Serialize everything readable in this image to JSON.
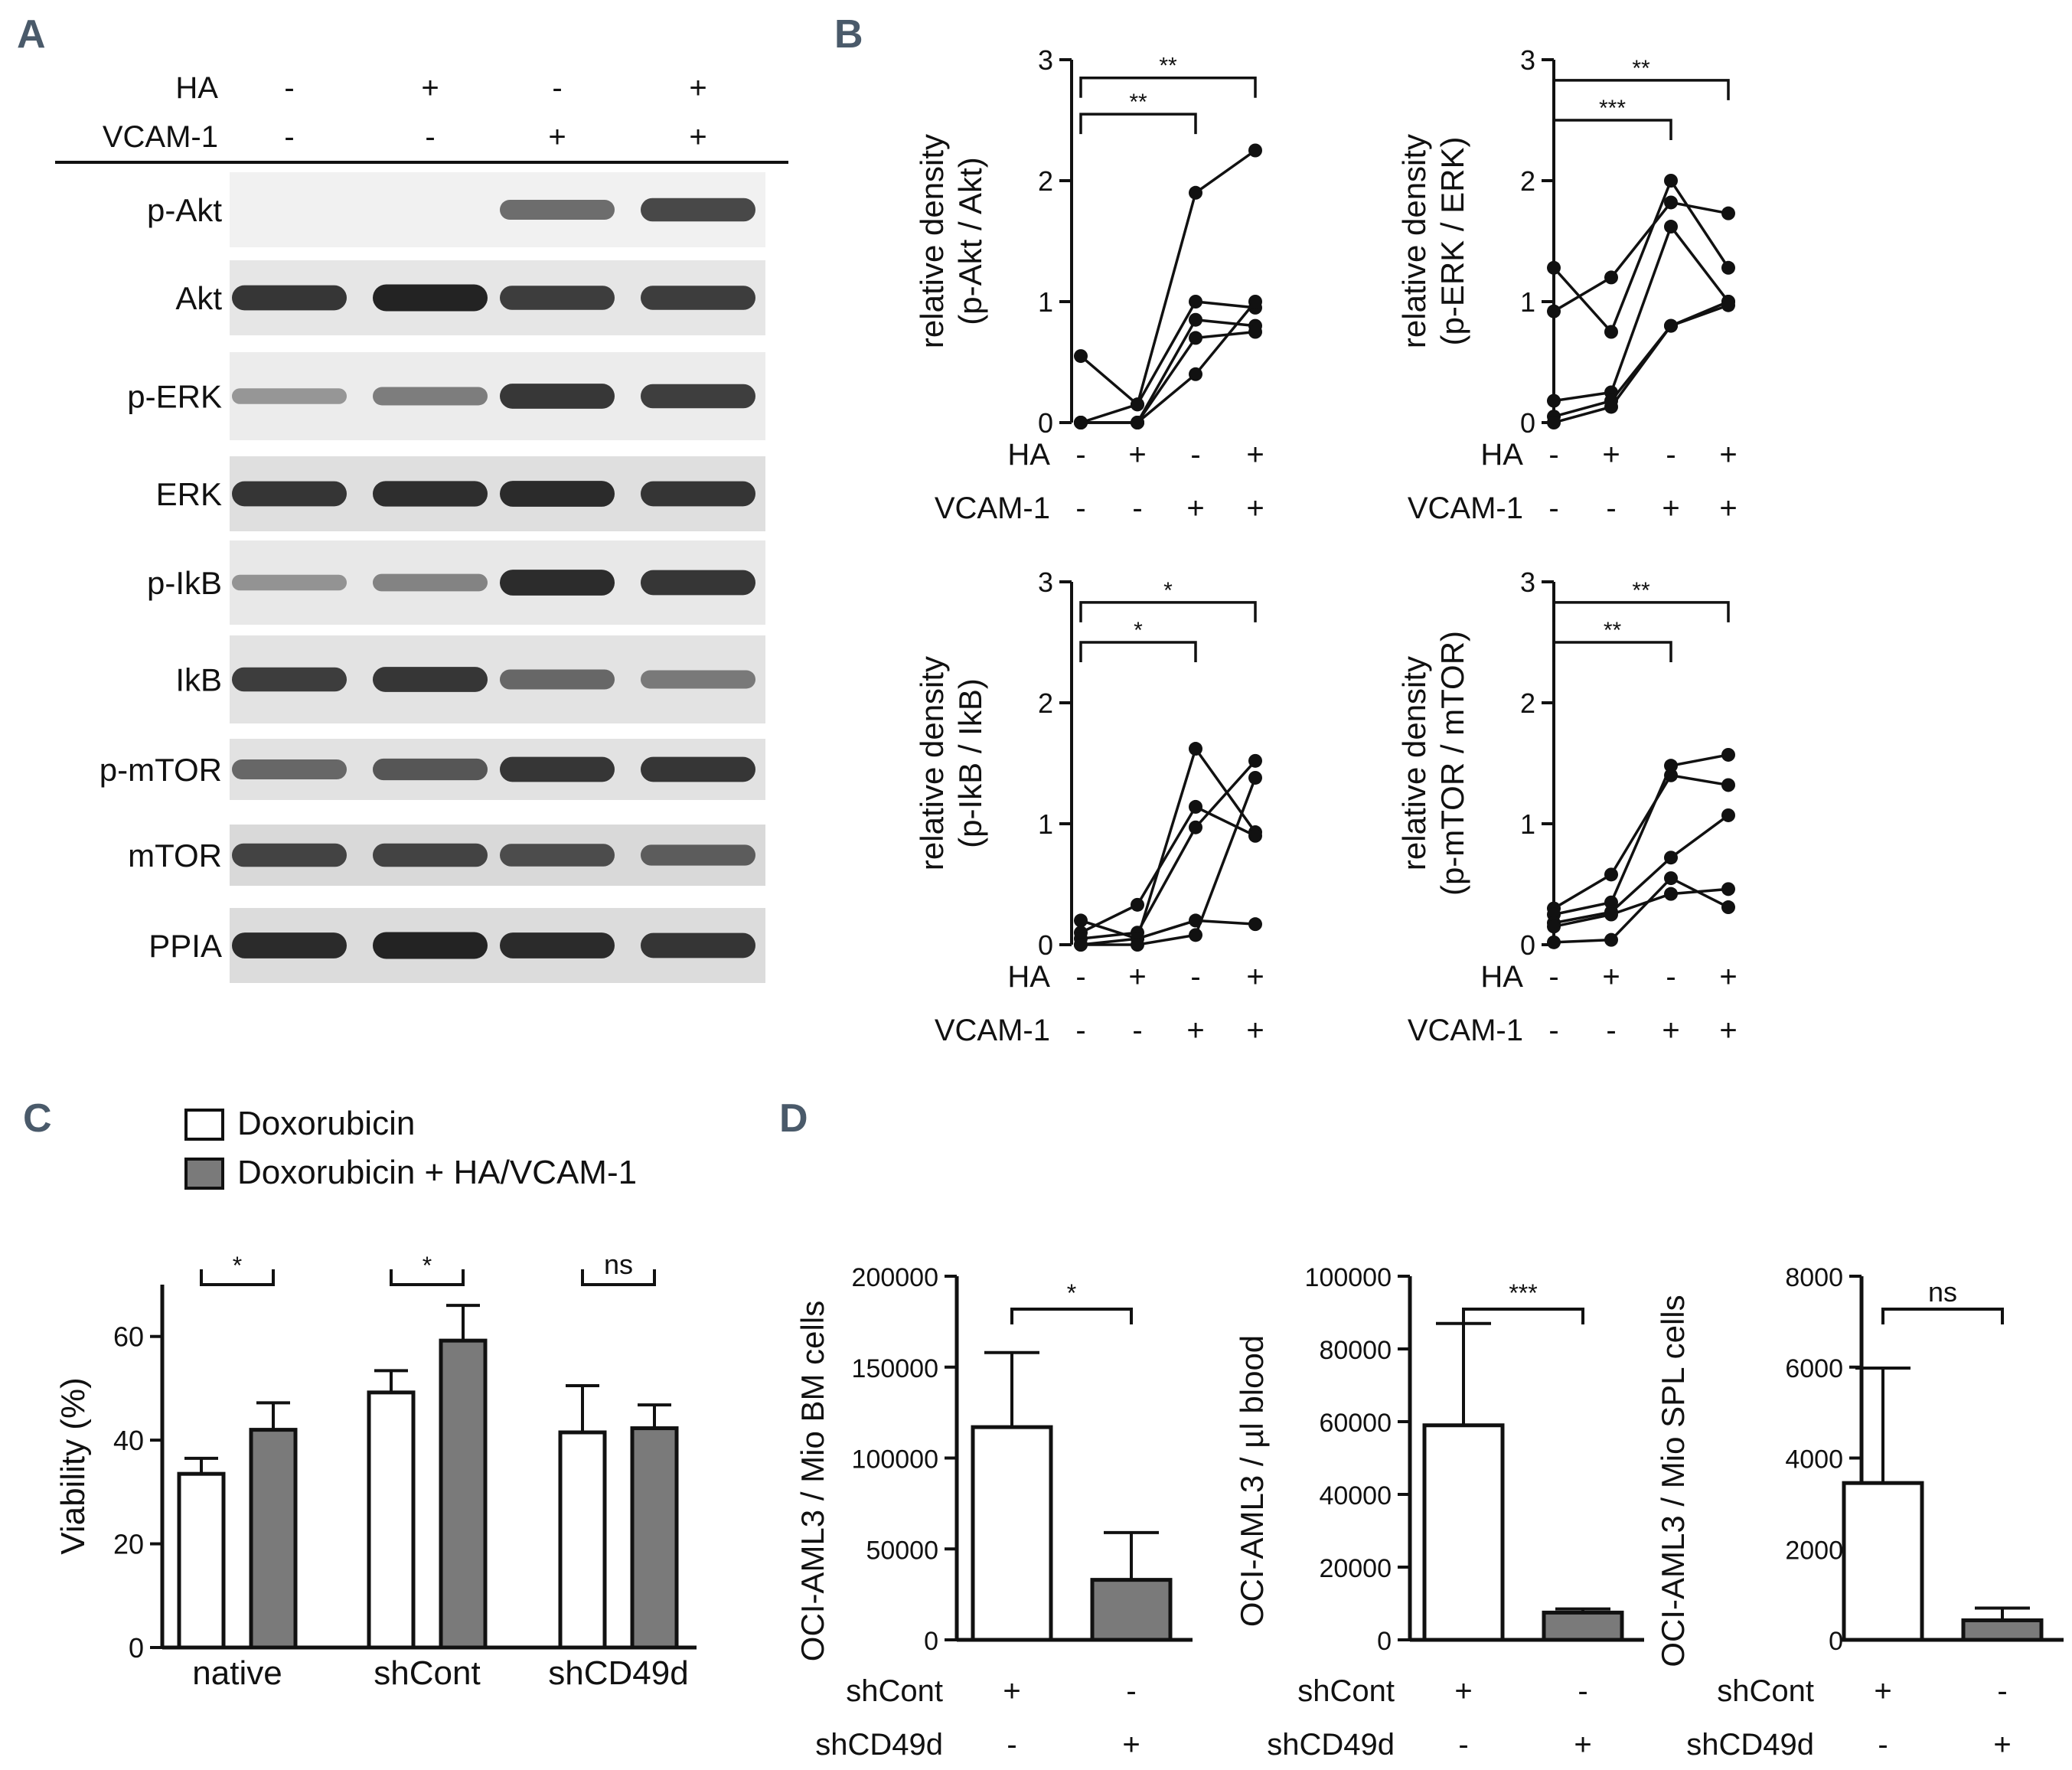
{
  "panel_labels": [
    "A",
    "B",
    "C",
    "D"
  ],
  "panelA": {
    "conditions": [
      {
        "label": "HA",
        "signs": [
          "-",
          "+",
          "-",
          "+"
        ]
      },
      {
        "label": "VCAM-1",
        "signs": [
          "-",
          "-",
          "+",
          "+"
        ]
      }
    ],
    "rows": [
      {
        "label": "p-Akt",
        "intensity": [
          0.03,
          0.03,
          0.55,
          0.75
        ],
        "bg": "#f1f1f1"
      },
      {
        "label": "Akt",
        "intensity": [
          0.85,
          0.95,
          0.8,
          0.8
        ],
        "bg": "#e6e6e6"
      },
      {
        "label": "p-ERK",
        "intensity": [
          0.3,
          0.45,
          0.85,
          0.8
        ],
        "bg": "#ececec"
      },
      {
        "label": "ERK",
        "intensity": [
          0.85,
          0.88,
          0.9,
          0.85
        ],
        "bg": "#dfdfdf"
      },
      {
        "label": "p-IkB",
        "intensity": [
          0.3,
          0.4,
          0.9,
          0.85
        ],
        "bg": "#e8e8e8"
      },
      {
        "label": "IkB",
        "intensity": [
          0.8,
          0.85,
          0.55,
          0.45
        ],
        "bg": "#e3e3e3"
      },
      {
        "label": "p-mTOR",
        "intensity": [
          0.55,
          0.65,
          0.85,
          0.85
        ],
        "bg": "#e2e2e2"
      },
      {
        "label": "mTOR",
        "intensity": [
          0.75,
          0.75,
          0.7,
          0.6
        ],
        "bg": "#d9d9d9"
      },
      {
        "label": "PPIA",
        "intensity": [
          0.9,
          0.95,
          0.9,
          0.85
        ],
        "bg": "#dcdcdc"
      }
    ]
  },
  "panelB_conditions": [
    {
      "label": "HA",
      "signs": [
        "-",
        "+",
        "-",
        "+"
      ]
    },
    {
      "label": "VCAM-1",
      "signs": [
        "-",
        "-",
        "+",
        "+"
      ]
    }
  ],
  "chart_data": [
    {
      "type": "line",
      "ylabel_line1": "relative density",
      "ylabel_line2": "(p-Akt / Akt)",
      "ylim": [
        0,
        3
      ],
      "yticks": [
        "0",
        "1",
        "2",
        "3"
      ],
      "series": [
        {
          "values": [
            0.55,
            0.15,
            1.9,
            2.25
          ]
        },
        {
          "values": [
            0.0,
            0.15,
            1.0,
            0.95
          ]
        },
        {
          "values": [
            0.0,
            0.0,
            0.85,
            0.8
          ]
        },
        {
          "values": [
            0.0,
            0.0,
            0.7,
            0.75
          ]
        },
        {
          "values": [
            0.0,
            0.0,
            0.4,
            1.0
          ]
        }
      ],
      "brackets": [
        {
          "from": 0,
          "to": 2,
          "level": 2.55,
          "label": "**"
        },
        {
          "from": 0,
          "to": 3,
          "level": 2.85,
          "label": "**"
        }
      ]
    },
    {
      "type": "line",
      "ylabel_line1": "relative density",
      "ylabel_line2": "(p-ERK / ERK)",
      "ylim": [
        0,
        3
      ],
      "yticks": [
        "0",
        "1",
        "2",
        "3"
      ],
      "series": [
        {
          "values": [
            1.28,
            0.75,
            2.0,
            1.28
          ]
        },
        {
          "values": [
            0.92,
            1.2,
            1.82,
            1.73
          ]
        },
        {
          "values": [
            0.18,
            0.25,
            1.62,
            1.0
          ]
        },
        {
          "values": [
            0.05,
            0.18,
            0.8,
            1.0
          ]
        },
        {
          "values": [
            0.0,
            0.13,
            0.8,
            0.97
          ]
        }
      ],
      "brackets": [
        {
          "from": 0,
          "to": 2,
          "level": 2.5,
          "label": "***"
        },
        {
          "from": 0,
          "to": 3,
          "level": 2.83,
          "label": "**"
        }
      ]
    },
    {
      "type": "line",
      "ylabel_line1": "relative density",
      "ylabel_line2": "(p-IkB / IkB)",
      "ylim": [
        0,
        3
      ],
      "yticks": [
        "0",
        "1",
        "2",
        "3"
      ],
      "series": [
        {
          "values": [
            0.2,
            0.05,
            1.62,
            0.93
          ]
        },
        {
          "values": [
            0.1,
            0.33,
            1.14,
            0.9
          ]
        },
        {
          "values": [
            0.05,
            0.1,
            0.97,
            1.52
          ]
        },
        {
          "values": [
            0.0,
            0.05,
            0.2,
            0.17
          ]
        },
        {
          "values": [
            0.0,
            0.0,
            0.08,
            1.38
          ]
        }
      ],
      "brackets": [
        {
          "from": 0,
          "to": 2,
          "level": 2.5,
          "label": "*"
        },
        {
          "from": 0,
          "to": 3,
          "level": 2.83,
          "label": "*"
        }
      ]
    },
    {
      "type": "line",
      "ylabel_line1": "relative density",
      "ylabel_line2": "(p-mTOR / mTOR)",
      "ylim": [
        0,
        3
      ],
      "yticks": [
        "0",
        "1",
        "2",
        "3"
      ],
      "series": [
        {
          "values": [
            0.3,
            0.58,
            1.4,
            1.32
          ]
        },
        {
          "values": [
            0.25,
            0.35,
            1.48,
            1.57
          ]
        },
        {
          "values": [
            0.18,
            0.27,
            0.72,
            1.07
          ]
        },
        {
          "values": [
            0.15,
            0.25,
            0.42,
            0.46
          ]
        },
        {
          "values": [
            0.02,
            0.04,
            0.55,
            0.31
          ]
        }
      ],
      "brackets": [
        {
          "from": 0,
          "to": 2,
          "level": 2.5,
          "label": "**"
        },
        {
          "from": 0,
          "to": 3,
          "level": 2.83,
          "label": "**"
        }
      ]
    },
    {
      "type": "bar",
      "ylabel": "Viability (%)",
      "ylim": [
        0,
        70
      ],
      "yticks": [
        "0",
        "20",
        "40",
        "60"
      ],
      "categories": [
        "native",
        "shCont",
        "shCD49d"
      ],
      "series": [
        {
          "name": "Doxorubicin",
          "color": "#ffffff",
          "values": [
            33.5,
            49.2,
            41.5
          ],
          "errors": [
            3,
            4.2,
            9
          ]
        },
        {
          "name": "Doxorubicin + HA/VCAM-1",
          "color": "#7a7a7a",
          "values": [
            42.0,
            59.2,
            42.3
          ],
          "errors": [
            5.2,
            6.8,
            4.5
          ]
        }
      ],
      "significance": [
        "*",
        "*",
        "ns"
      ]
    },
    {
      "type": "bar",
      "ylabel": "OCI-AML3 / Mio BM cells",
      "ylim": [
        0,
        200000
      ],
      "yticks": [
        "0",
        "50000",
        "100000",
        "150000",
        "200000"
      ],
      "values": [
        117000,
        33000
      ],
      "errors": [
        41000,
        26000
      ],
      "colors": [
        "#ffffff",
        "#7a7a7a"
      ],
      "significance": "*",
      "xrows": [
        {
          "label": "shCont",
          "signs": [
            "+",
            "-"
          ]
        },
        {
          "label": "shCD49d",
          "signs": [
            "-",
            "+"
          ]
        }
      ]
    },
    {
      "type": "bar",
      "ylabel": "OCI-AML3 / µl blood",
      "ylim": [
        0,
        100000
      ],
      "yticks": [
        "0",
        "20000",
        "40000",
        "60000",
        "80000",
        "100000"
      ],
      "values": [
        59000,
        7500
      ],
      "errors": [
        28000,
        1000
      ],
      "colors": [
        "#ffffff",
        "#7a7a7a"
      ],
      "significance": "***",
      "xrows": [
        {
          "label": "shCont",
          "signs": [
            "+",
            "-"
          ]
        },
        {
          "label": "shCD49d",
          "signs": [
            "-",
            "+"
          ]
        }
      ]
    },
    {
      "type": "bar",
      "ylabel": "OCI-AML3 / Mio SPL cells",
      "ylim": [
        0,
        8000
      ],
      "yticks": [
        "0",
        "2000",
        "4000",
        "6000",
        "8000"
      ],
      "values": [
        3450,
        430
      ],
      "errors": [
        2530,
        270
      ],
      "colors": [
        "#ffffff",
        "#7a7a7a"
      ],
      "significance": "ns",
      "xrows": [
        {
          "label": "shCont",
          "signs": [
            "+",
            "-"
          ]
        },
        {
          "label": "shCD49d",
          "signs": [
            "-",
            "+"
          ]
        }
      ]
    }
  ]
}
